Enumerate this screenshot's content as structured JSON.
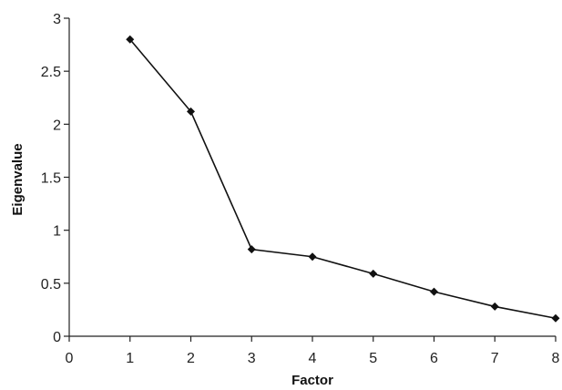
{
  "chart_data": {
    "type": "line",
    "title": "",
    "xlabel": "Factor",
    "ylabel": "Eigenvalue",
    "x": [
      1,
      2,
      3,
      4,
      5,
      6,
      7,
      8
    ],
    "series": [
      {
        "values": [
          2.8,
          2.12,
          0.82,
          0.75,
          0.59,
          0.42,
          0.28,
          0.17
        ]
      }
    ],
    "xlim": [
      0,
      8
    ],
    "ylim": [
      0,
      3
    ],
    "xticks": [
      "0",
      "1",
      "2",
      "3",
      "4",
      "5",
      "6",
      "7",
      "8"
    ],
    "yticks": [
      "0",
      "0.5",
      "1",
      "1.5",
      "2",
      "2.5",
      "3"
    ],
    "grid": false,
    "legend": "none",
    "marker": "diamond",
    "line_color": "#111111"
  }
}
